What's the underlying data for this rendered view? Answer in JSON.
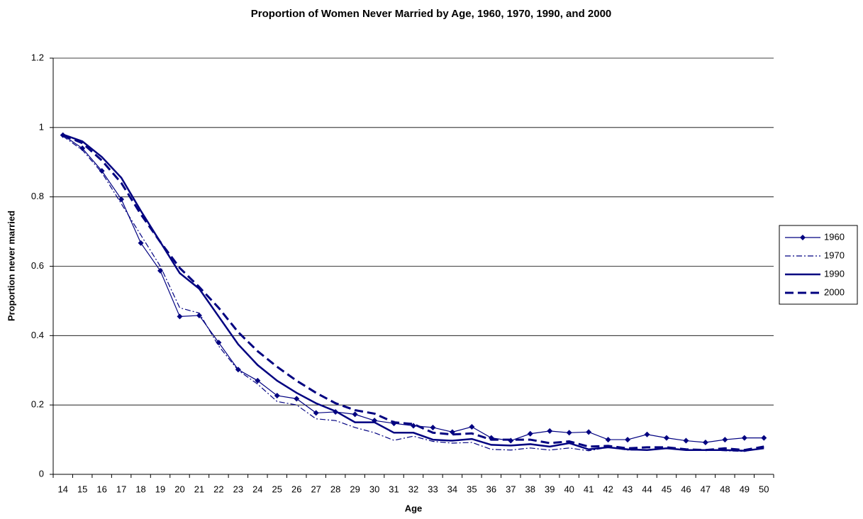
{
  "chart_data": {
    "type": "line",
    "title": "Proportion of Women Never Married by Age, 1960, 1970, 1990, and 2000",
    "x_label": "Age",
    "y_label": "Proportion never married",
    "categories": [
      14,
      15,
      16,
      17,
      18,
      19,
      20,
      21,
      22,
      23,
      24,
      25,
      26,
      27,
      28,
      29,
      30,
      31,
      32,
      33,
      34,
      35,
      36,
      37,
      38,
      39,
      40,
      41,
      42,
      43,
      44,
      45,
      46,
      47,
      48,
      49,
      50
    ],
    "ylim": [
      0,
      1.2
    ],
    "yticks": [
      0,
      0.2,
      0.4,
      0.6,
      0.8,
      1,
      1.2
    ],
    "grid": true,
    "legend": "right",
    "series": [
      {
        "name": "1960",
        "color": "#000080",
        "line_style": "solid-thin",
        "marker": "diamond",
        "values": [
          0.978,
          0.94,
          0.875,
          0.793,
          0.667,
          0.587,
          0.455,
          0.458,
          0.38,
          0.302,
          0.27,
          0.227,
          0.218,
          0.177,
          0.18,
          0.173,
          0.155,
          0.147,
          0.14,
          0.135,
          0.122,
          0.137,
          0.105,
          0.097,
          0.117,
          0.125,
          0.12,
          0.122,
          0.1,
          0.1,
          0.115,
          0.105,
          0.097,
          0.092,
          0.1,
          0.105,
          0.105
        ]
      },
      {
        "name": "1970",
        "color": "#000080",
        "line_style": "dash-dot",
        "values": [
          0.975,
          0.935,
          0.87,
          0.78,
          0.69,
          0.6,
          0.48,
          0.465,
          0.37,
          0.3,
          0.26,
          0.21,
          0.2,
          0.16,
          0.155,
          0.135,
          0.12,
          0.098,
          0.11,
          0.095,
          0.09,
          0.092,
          0.072,
          0.07,
          0.076,
          0.07,
          0.076,
          0.068,
          0.078,
          0.07,
          0.07,
          0.075,
          0.07,
          0.07,
          0.068,
          0.066,
          0.078
        ]
      },
      {
        "name": "1990",
        "color": "#000080",
        "line_style": "solid",
        "values": [
          0.98,
          0.96,
          0.915,
          0.855,
          0.76,
          0.67,
          0.58,
          0.535,
          0.455,
          0.375,
          0.315,
          0.27,
          0.235,
          0.205,
          0.182,
          0.15,
          0.15,
          0.12,
          0.12,
          0.1,
          0.097,
          0.102,
          0.085,
          0.083,
          0.087,
          0.08,
          0.09,
          0.072,
          0.078,
          0.072,
          0.07,
          0.075,
          0.07,
          0.07,
          0.07,
          0.068,
          0.075
        ]
      },
      {
        "name": "2000",
        "color": "#000080",
        "line_style": "dash",
        "values": [
          0.978,
          0.955,
          0.905,
          0.84,
          0.75,
          0.67,
          0.595,
          0.54,
          0.48,
          0.41,
          0.355,
          0.31,
          0.27,
          0.235,
          0.205,
          0.185,
          0.175,
          0.15,
          0.145,
          0.12,
          0.115,
          0.118,
          0.1,
          0.1,
          0.1,
          0.09,
          0.095,
          0.08,
          0.082,
          0.075,
          0.078,
          0.078,
          0.072,
          0.07,
          0.075,
          0.07,
          0.08
        ]
      }
    ]
  }
}
